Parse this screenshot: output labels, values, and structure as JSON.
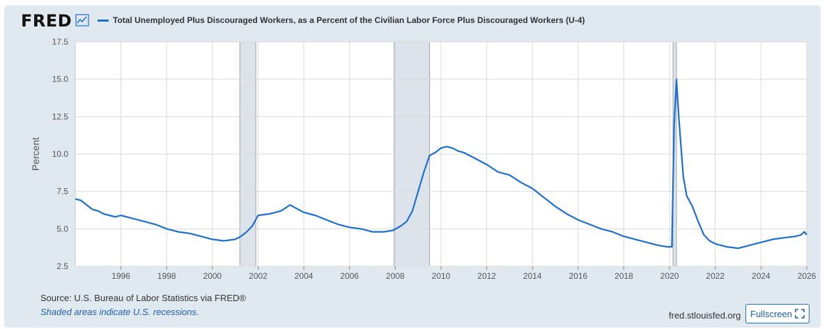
{
  "brand": "FRED",
  "brand_icon": "trend-line-icon",
  "chart_data": {
    "type": "line",
    "title": "Total Unemployed Plus Discouraged Workers, as a Percent of the Civilian Labor Force Plus Discouraged Workers (U-4)",
    "ylabel": "Percent",
    "xlabel": "",
    "xlim": [
      1994.0,
      2026.0
    ],
    "ylim": [
      2.5,
      17.5
    ],
    "x_ticks": [
      "1996",
      "1998",
      "2000",
      "2002",
      "2004",
      "2006",
      "2008",
      "2010",
      "2012",
      "2014",
      "2016",
      "2018",
      "2020",
      "2022",
      "2024",
      "2026"
    ],
    "y_ticks": [
      "2.5",
      "5.0",
      "7.5",
      "10.0",
      "12.5",
      "15.0",
      "17.5"
    ],
    "grid": true,
    "line_color": "#1a6fd1",
    "recessions": [
      [
        2001.2,
        2001.9
      ],
      [
        2007.95,
        2009.5
      ],
      [
        2020.15,
        2020.3
      ]
    ],
    "series": [
      {
        "x": [
          1994.0,
          1994.25,
          1994.5,
          1994.75,
          1995.0,
          1995.25,
          1995.5,
          1995.75,
          1996.0,
          1996.5,
          1997.0,
          1997.5,
          1998.0,
          1998.5,
          1999.0,
          1999.5,
          2000.0,
          2000.5,
          2001.0,
          2001.25,
          2001.5,
          2001.75,
          2002.0,
          2002.5,
          2003.0,
          2003.4,
          2003.75,
          2004.0,
          2004.5,
          2005.0,
          2005.5,
          2006.0,
          2006.5,
          2007.0,
          2007.5,
          2007.9,
          2008.25,
          2008.5,
          2008.75,
          2009.0,
          2009.25,
          2009.5,
          2009.75,
          2010.0,
          2010.25,
          2010.5,
          2010.75,
          2011.0,
          2011.5,
          2012.0,
          2012.5,
          2013.0,
          2013.5,
          2014.0,
          2014.5,
          2015.0,
          2015.5,
          2016.0,
          2016.5,
          2017.0,
          2017.5,
          2018.0,
          2018.5,
          2019.0,
          2019.5,
          2019.9,
          2020.1,
          2020.2,
          2020.3,
          2020.4,
          2020.5,
          2020.6,
          2020.75,
          2021.0,
          2021.25,
          2021.5,
          2021.75,
          2022.0,
          2022.25,
          2022.5,
          2023.0,
          2023.5,
          2024.0,
          2024.5,
          2025.0,
          2025.5,
          2025.75,
          2025.9,
          2026.0
        ],
        "values": [
          7.0,
          6.9,
          6.6,
          6.3,
          6.2,
          6.0,
          5.9,
          5.8,
          5.9,
          5.7,
          5.5,
          5.3,
          5.0,
          4.8,
          4.7,
          4.5,
          4.3,
          4.2,
          4.3,
          4.5,
          4.8,
          5.2,
          5.9,
          6.0,
          6.2,
          6.6,
          6.3,
          6.1,
          5.9,
          5.6,
          5.3,
          5.1,
          5.0,
          4.8,
          4.8,
          4.9,
          5.2,
          5.5,
          6.2,
          7.5,
          8.8,
          9.9,
          10.1,
          10.4,
          10.5,
          10.4,
          10.2,
          10.1,
          9.7,
          9.3,
          8.8,
          8.6,
          8.1,
          7.7,
          7.1,
          6.5,
          6.0,
          5.6,
          5.3,
          5.0,
          4.8,
          4.5,
          4.3,
          4.1,
          3.9,
          3.8,
          3.8,
          12.0,
          15.0,
          12.5,
          10.5,
          8.5,
          7.2,
          6.5,
          5.5,
          4.6,
          4.2,
          4.0,
          3.9,
          3.8,
          3.7,
          3.9,
          4.1,
          4.3,
          4.4,
          4.5,
          4.6,
          4.8,
          4.6
        ]
      }
    ]
  },
  "footer": {
    "source": "Source: U.S. Bureau of Labor Statistics via FRED®",
    "note": "Shaded areas indicate U.S. recessions.",
    "website": "fred.stlouisfed.org",
    "fullscreen_label": "Fullscreen",
    "fullscreen_icon": "fullscreen-icon"
  }
}
